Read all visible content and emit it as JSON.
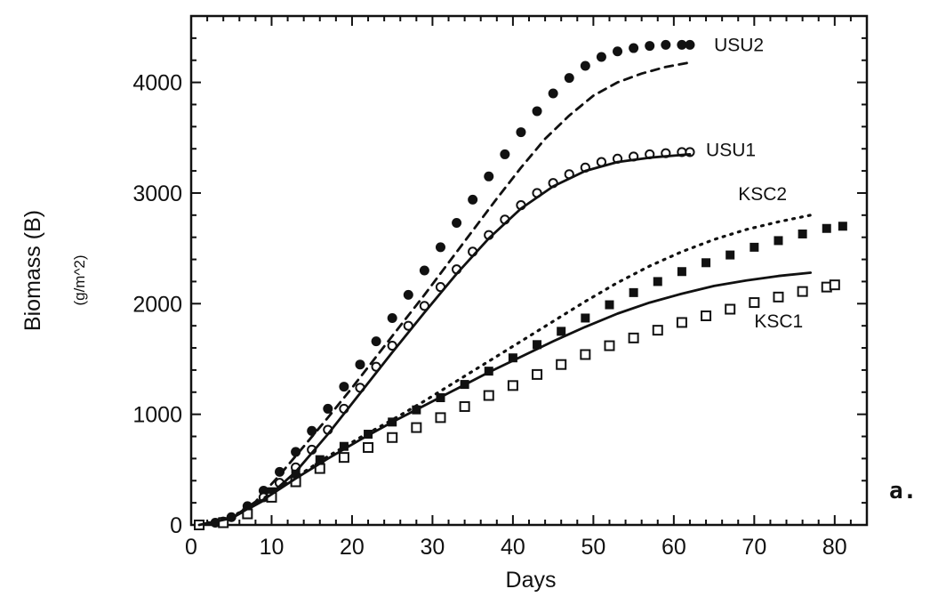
{
  "chart_data": {
    "type": "scatter",
    "xlabel": "Days",
    "ylabel": "Biomass (B)",
    "yunit": "(g/m^2)",
    "panel_label": "a.",
    "xlim": [
      0,
      84
    ],
    "ylim": [
      0,
      4600
    ],
    "xticks": [
      0,
      10,
      20,
      30,
      40,
      50,
      60,
      70,
      80
    ],
    "yticks": [
      0,
      1000,
      2000,
      3000,
      4000
    ],
    "grid": false,
    "series": [
      {
        "name": "USU2",
        "marker": "filled-circle",
        "color": "#111111",
        "x": [
          1,
          3,
          5,
          7,
          9,
          11,
          13,
          15,
          17,
          19,
          21,
          23,
          25,
          27,
          29,
          31,
          33,
          35,
          37,
          39,
          41,
          43,
          45,
          47,
          49,
          51,
          53,
          55,
          57,
          59,
          61,
          62
        ],
        "y": [
          0,
          20,
          70,
          170,
          310,
          480,
          660,
          850,
          1050,
          1250,
          1450,
          1660,
          1870,
          2080,
          2300,
          2510,
          2730,
          2940,
          3150,
          3350,
          3550,
          3740,
          3900,
          4040,
          4150,
          4230,
          4280,
          4310,
          4330,
          4340,
          4340,
          4340
        ]
      },
      {
        "name": "USU2-model",
        "line_style": "dashed",
        "color": "#111111",
        "x": [
          1,
          5,
          8,
          11,
          14,
          17,
          20,
          23,
          26,
          29,
          32,
          35,
          38,
          41,
          44,
          47,
          50,
          53,
          56,
          59,
          62
        ],
        "y": [
          0,
          60,
          210,
          450,
          710,
          970,
          1240,
          1520,
          1800,
          2080,
          2370,
          2660,
          2950,
          3230,
          3490,
          3700,
          3880,
          4000,
          4080,
          4140,
          4180
        ]
      },
      {
        "name": "USU1",
        "marker": "open-circle",
        "color": "#111111",
        "x": [
          1,
          4,
          7,
          9,
          11,
          13,
          15,
          17,
          19,
          21,
          23,
          25,
          27,
          29,
          31,
          33,
          35,
          37,
          39,
          41,
          43,
          45,
          47,
          49,
          51,
          53,
          55,
          57,
          59,
          61,
          62
        ],
        "y": [
          0,
          30,
          130,
          250,
          380,
          520,
          680,
          860,
          1050,
          1240,
          1430,
          1620,
          1800,
          1980,
          2150,
          2310,
          2470,
          2620,
          2760,
          2890,
          3000,
          3090,
          3170,
          3230,
          3280,
          3310,
          3330,
          3350,
          3360,
          3370,
          3370
        ]
      },
      {
        "name": "USU1-model",
        "line_style": "solid",
        "color": "#111111",
        "x": [
          1,
          5,
          9,
          13,
          17,
          21,
          25,
          29,
          33,
          37,
          41,
          45,
          49,
          53,
          57,
          62
        ],
        "y": [
          0,
          60,
          220,
          480,
          820,
          1190,
          1560,
          1920,
          2270,
          2590,
          2860,
          3060,
          3200,
          3280,
          3320,
          3350
        ]
      },
      {
        "name": "KSC2",
        "marker": "filled-square",
        "color": "#111111",
        "x": [
          1,
          4,
          7,
          10,
          13,
          16,
          19,
          22,
          25,
          28,
          31,
          34,
          37,
          40,
          43,
          46,
          49,
          52,
          55,
          58,
          61,
          64,
          67,
          70,
          73,
          76,
          79,
          81
        ],
        "y": [
          0,
          30,
          140,
          300,
          460,
          590,
          710,
          820,
          930,
          1040,
          1150,
          1270,
          1390,
          1510,
          1630,
          1750,
          1870,
          1990,
          2100,
          2200,
          2290,
          2370,
          2440,
          2510,
          2570,
          2630,
          2680,
          2700
        ]
      },
      {
        "name": "KSC2-model",
        "line_style": "dotted",
        "color": "#111111",
        "x": [
          1,
          5,
          9,
          13,
          17,
          21,
          25,
          29,
          33,
          37,
          41,
          45,
          49,
          53,
          57,
          61,
          65,
          69,
          73,
          77
        ],
        "y": [
          0,
          70,
          240,
          430,
          620,
          790,
          950,
          1120,
          1300,
          1480,
          1660,
          1840,
          2020,
          2190,
          2340,
          2470,
          2580,
          2670,
          2740,
          2800
        ]
      },
      {
        "name": "KSC1",
        "marker": "open-square",
        "color": "#111111",
        "x": [
          1,
          4,
          7,
          10,
          13,
          16,
          19,
          22,
          25,
          28,
          31,
          34,
          37,
          40,
          43,
          46,
          49,
          52,
          55,
          58,
          61,
          64,
          67,
          70,
          73,
          76,
          79,
          80
        ],
        "y": [
          0,
          20,
          100,
          250,
          390,
          510,
          610,
          700,
          790,
          880,
          970,
          1070,
          1170,
          1260,
          1360,
          1450,
          1540,
          1620,
          1690,
          1760,
          1830,
          1890,
          1950,
          2010,
          2060,
          2110,
          2150,
          2170
        ]
      },
      {
        "name": "KSC1-model",
        "line_style": "solid",
        "color": "#111111",
        "x": [
          1,
          5,
          9,
          13,
          17,
          21,
          25,
          29,
          33,
          37,
          41,
          45,
          49,
          53,
          57,
          61,
          65,
          69,
          73,
          77
        ],
        "y": [
          0,
          60,
          230,
          420,
          600,
          770,
          930,
          1080,
          1230,
          1380,
          1520,
          1660,
          1790,
          1910,
          2010,
          2090,
          2160,
          2210,
          2250,
          2280
        ]
      }
    ],
    "annotations": [
      {
        "text": "USU2",
        "x": 65,
        "y": 4340
      },
      {
        "text": "USU1",
        "x": 64,
        "y": 3390
      },
      {
        "text": "KSC2",
        "x": 68,
        "y": 2990
      },
      {
        "text": "KSC1",
        "x": 70,
        "y": 1840
      }
    ]
  }
}
